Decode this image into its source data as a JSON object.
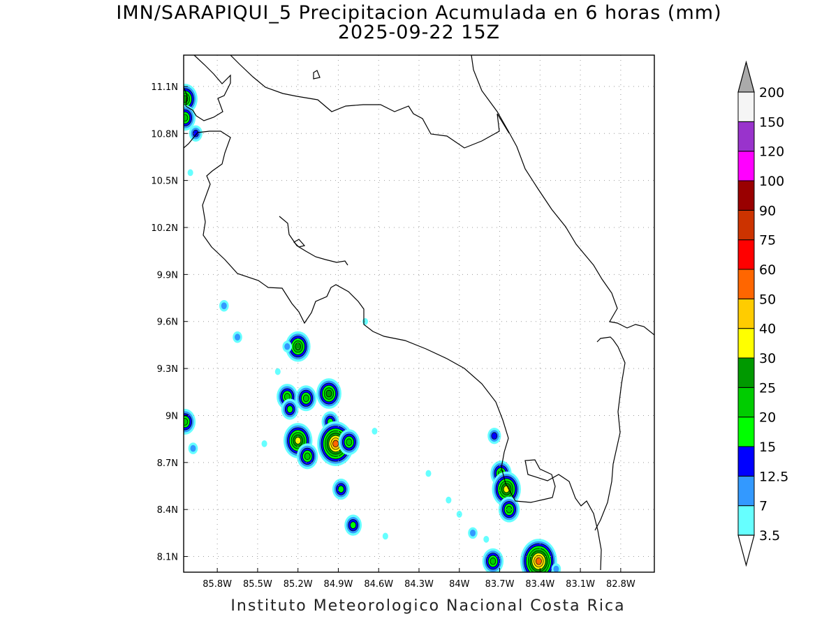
{
  "title": "IMN/SARAPIQUI_5 Precipitacion Acumulada en 6 horas (mm)",
  "subtitle": "2025-09-22 15Z",
  "footer": "Instituto Meteorologico Nacional Costa Rica",
  "map": {
    "lon_range": [
      -86.05,
      -82.55
    ],
    "lat_range": [
      8.0,
      11.3
    ],
    "lon_ticks": [
      {
        "value": -85.8,
        "label": "85.8W"
      },
      {
        "value": -85.5,
        "label": "85.5W"
      },
      {
        "value": -85.2,
        "label": "85.2W"
      },
      {
        "value": -84.9,
        "label": "84.9W"
      },
      {
        "value": -84.6,
        "label": "84.6W"
      },
      {
        "value": -84.3,
        "label": "84.3W"
      },
      {
        "value": -84.0,
        "label": "84W"
      },
      {
        "value": -83.7,
        "label": "83.7W"
      },
      {
        "value": -83.4,
        "label": "83.4W"
      },
      {
        "value": -83.1,
        "label": "83.1W"
      },
      {
        "value": -82.8,
        "label": "82.8W"
      }
    ],
    "lat_ticks": [
      {
        "value": 11.1,
        "label": "11.1N"
      },
      {
        "value": 10.8,
        "label": "10.8N"
      },
      {
        "value": 10.5,
        "label": "10.5N"
      },
      {
        "value": 10.2,
        "label": "10.2N"
      },
      {
        "value": 9.9,
        "label": "9.9N"
      },
      {
        "value": 9.6,
        "label": "9.6N"
      },
      {
        "value": 9.3,
        "label": "9.3N"
      },
      {
        "value": 9.0,
        "label": "9N"
      },
      {
        "value": 8.7,
        "label": "8.7N"
      },
      {
        "value": 8.4,
        "label": "8.4N"
      },
      {
        "value": 8.1,
        "label": "8.1N"
      }
    ],
    "grid": true
  },
  "colorbar": {
    "levels": [
      "3.5",
      "7",
      "12.5",
      "15",
      "20",
      "25",
      "30",
      "40",
      "50",
      "60",
      "75",
      "90",
      "100",
      "120",
      "150",
      "200"
    ],
    "colors": [
      "#66ffff",
      "#3399ff",
      "#0000ff",
      "#00ff00",
      "#00cc00",
      "#009900",
      "#ffff00",
      "#ffcc00",
      "#ff6600",
      "#ff0000",
      "#cc3300",
      "#990000",
      "#ff00ff",
      "#9933cc",
      "#f5f5f5"
    ],
    "below_color": "#ffffff",
    "above_color": "#aaaaaa"
  },
  "precip_cells": [
    {
      "lon": -86.04,
      "lat": 11.02,
      "mm": 25
    },
    {
      "lon": -86.04,
      "lat": 10.9,
      "mm": 20
    },
    {
      "lon": -85.96,
      "lat": 10.8,
      "mm": 12.5
    },
    {
      "lon": -86.0,
      "lat": 10.55,
      "mm": 3.5
    },
    {
      "lon": -85.75,
      "lat": 9.7,
      "mm": 7
    },
    {
      "lon": -85.65,
      "lat": 9.5,
      "mm": 7
    },
    {
      "lon": -85.2,
      "lat": 9.44,
      "mm": 25
    },
    {
      "lon": -85.28,
      "lat": 9.44,
      "mm": 7
    },
    {
      "lon": -85.28,
      "lat": 9.12,
      "mm": 20
    },
    {
      "lon": -85.26,
      "lat": 9.04,
      "mm": 15
    },
    {
      "lon": -85.14,
      "lat": 9.11,
      "mm": 20
    },
    {
      "lon": -84.97,
      "lat": 9.14,
      "mm": 25
    },
    {
      "lon": -84.96,
      "lat": 8.96,
      "mm": 15
    },
    {
      "lon": -84.92,
      "lat": 8.82,
      "mm": 50
    },
    {
      "lon": -84.82,
      "lat": 8.83,
      "mm": 20
    },
    {
      "lon": -85.2,
      "lat": 8.84,
      "mm": 30
    },
    {
      "lon": -85.13,
      "lat": 8.74,
      "mm": 20
    },
    {
      "lon": -84.88,
      "lat": 8.53,
      "mm": 15
    },
    {
      "lon": -84.79,
      "lat": 8.3,
      "mm": 15
    },
    {
      "lon": -86.04,
      "lat": 8.96,
      "mm": 20
    },
    {
      "lon": -85.98,
      "lat": 8.79,
      "mm": 7
    },
    {
      "lon": -83.74,
      "lat": 8.87,
      "mm": 12.5
    },
    {
      "lon": -83.69,
      "lat": 8.63,
      "mm": 20
    },
    {
      "lon": -83.65,
      "lat": 8.53,
      "mm": 30
    },
    {
      "lon": -83.63,
      "lat": 8.4,
      "mm": 20
    },
    {
      "lon": -83.75,
      "lat": 8.07,
      "mm": 20
    },
    {
      "lon": -83.41,
      "lat": 8.07,
      "mm": 50
    },
    {
      "lon": -83.28,
      "lat": 8.02,
      "mm": 7
    },
    {
      "lon": -84.55,
      "lat": 8.23,
      "mm": 3.5
    },
    {
      "lon": -84.63,
      "lat": 8.9,
      "mm": 3.5
    },
    {
      "lon": -84.7,
      "lat": 9.6,
      "mm": 3.5
    },
    {
      "lon": -85.45,
      "lat": 8.82,
      "mm": 3.5
    },
    {
      "lon": -84.23,
      "lat": 8.63,
      "mm": 3.5
    },
    {
      "lon": -84.08,
      "lat": 8.46,
      "mm": 3.5
    },
    {
      "lon": -83.9,
      "lat": 8.25,
      "mm": 7
    },
    {
      "lon": -83.8,
      "lat": 8.21,
      "mm": 3.5
    },
    {
      "lon": -84.0,
      "lat": 8.37,
      "mm": 3.5
    },
    {
      "lon": -85.35,
      "lat": 9.28,
      "mm": 3.5
    }
  ]
}
